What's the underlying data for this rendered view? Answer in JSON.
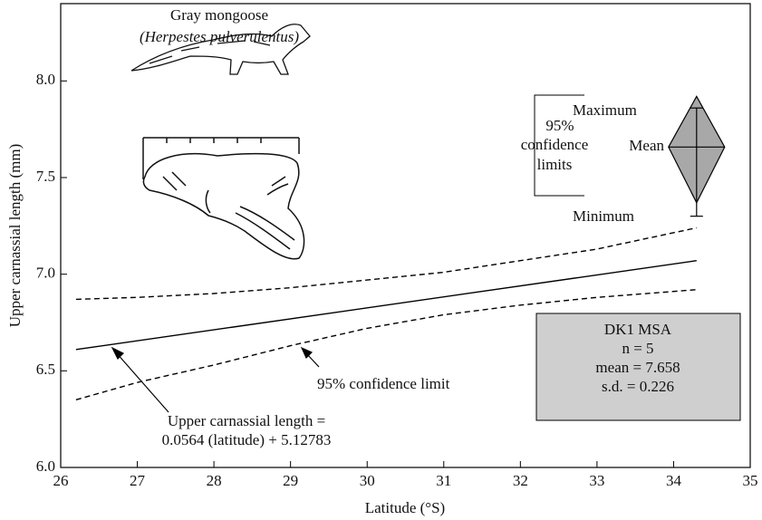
{
  "chart_data": {
    "type": "line",
    "xlabel": "Latitude (°S)",
    "ylabel": "Upper carnassial length (mm)",
    "xlim": [
      26,
      35
    ],
    "ylim": [
      6.0,
      8.4
    ],
    "xticks": [
      26,
      27,
      28,
      29,
      30,
      31,
      32,
      33,
      34,
      35
    ],
    "yticks": [
      {
        "value": 6.0,
        "label": "6.0"
      },
      {
        "value": 6.5,
        "label": "6.5"
      },
      {
        "value": 7.0,
        "label": "7.0"
      },
      {
        "value": 7.5,
        "label": "7.5"
      },
      {
        "value": 8.0,
        "label": "8.0"
      }
    ],
    "series": [
      {
        "color": "#000000",
        "style": "solid",
        "x": [
          26.2,
          34.3
        ],
        "values": [
          6.61,
          7.07
        ]
      },
      {
        "color": "#000000",
        "style": "dashed",
        "x": [
          26.2,
          27,
          28,
          29,
          30,
          31,
          32,
          33,
          34.3
        ],
        "values": [
          6.87,
          6.88,
          6.9,
          6.93,
          6.97,
          7.01,
          7.07,
          7.13,
          7.24
        ]
      },
      {
        "color": "#000000",
        "style": "dashed",
        "x": [
          26.2,
          27,
          28,
          29,
          30,
          31,
          32,
          33,
          34.3
        ],
        "values": [
          6.35,
          6.44,
          6.53,
          6.63,
          6.72,
          6.79,
          6.84,
          6.88,
          6.92
        ]
      }
    ],
    "diamond": {
      "x": 34.3,
      "mean": 7.658,
      "ci": [
        7.37,
        7.92
      ],
      "min": 7.3,
      "max": 7.86,
      "color": "#a8a8a8"
    },
    "annotations": {
      "regression": [
        "Upper carnassial length =",
        "0.0564 (latitude) + 5.12783"
      ],
      "confidence": "95% confidence limit",
      "key_ci": [
        "95%",
        "confidence",
        "limits"
      ],
      "key_max": "Maximum",
      "key_mean": "Mean",
      "key_min": "Minimum",
      "species_common": "Gray mongoose",
      "species_latin": "(Herpestes pulverulentus)",
      "stats": [
        "DK1 MSA",
        "n = 5",
        "mean = 7.658",
        "s.d. = 0.226"
      ]
    }
  }
}
